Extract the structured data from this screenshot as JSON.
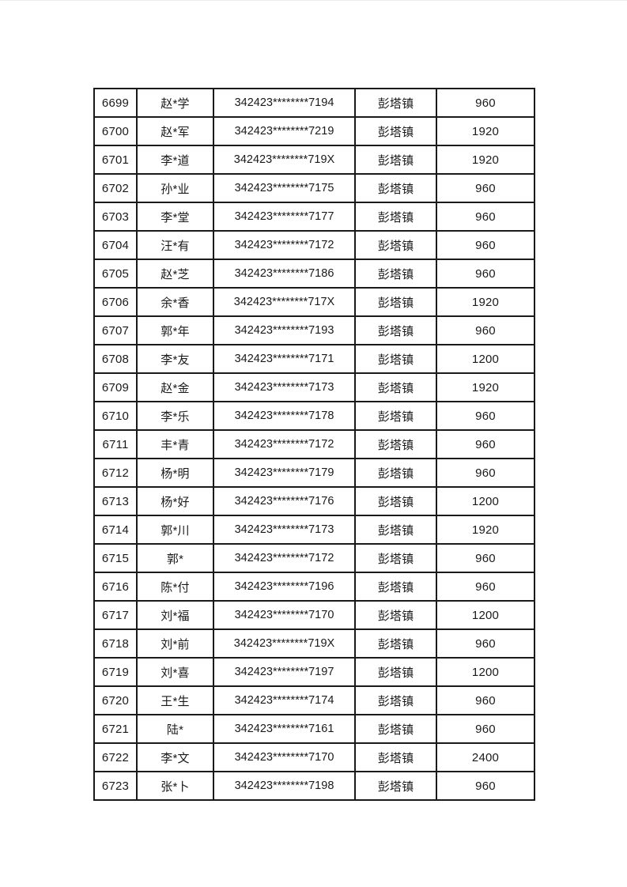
{
  "page": {
    "background_color": "#ffffff",
    "text_color": "#1a1a1a",
    "border_color": "#1a1a1a"
  },
  "table": {
    "rows": [
      {
        "no": "6699",
        "name": "赵*学",
        "id": "342423********7194",
        "town": "彭塔镇",
        "amount": "960"
      },
      {
        "no": "6700",
        "name": "赵*军",
        "id": "342423********7219",
        "town": "彭塔镇",
        "amount": "1920"
      },
      {
        "no": "6701",
        "name": "李*道",
        "id": "342423********719X",
        "town": "彭塔镇",
        "amount": "1920"
      },
      {
        "no": "6702",
        "name": "孙*业",
        "id": "342423********7175",
        "town": "彭塔镇",
        "amount": "960"
      },
      {
        "no": "6703",
        "name": "李*堂",
        "id": "342423********7177",
        "town": "彭塔镇",
        "amount": "960"
      },
      {
        "no": "6704",
        "name": "汪*有",
        "id": "342423********7172",
        "town": "彭塔镇",
        "amount": "960"
      },
      {
        "no": "6705",
        "name": "赵*芝",
        "id": "342423********7186",
        "town": "彭塔镇",
        "amount": "960"
      },
      {
        "no": "6706",
        "name": "余*香",
        "id": "342423********717X",
        "town": "彭塔镇",
        "amount": "1920"
      },
      {
        "no": "6707",
        "name": "郭*年",
        "id": "342423********7193",
        "town": "彭塔镇",
        "amount": "960"
      },
      {
        "no": "6708",
        "name": "李*友",
        "id": "342423********7171",
        "town": "彭塔镇",
        "amount": "1200"
      },
      {
        "no": "6709",
        "name": "赵*金",
        "id": "342423********7173",
        "town": "彭塔镇",
        "amount": "1920"
      },
      {
        "no": "6710",
        "name": "李*乐",
        "id": "342423********7178",
        "town": "彭塔镇",
        "amount": "960"
      },
      {
        "no": "6711",
        "name": "丰*青",
        "id": "342423********7172",
        "town": "彭塔镇",
        "amount": "960"
      },
      {
        "no": "6712",
        "name": "杨*明",
        "id": "342423********7179",
        "town": "彭塔镇",
        "amount": "960"
      },
      {
        "no": "6713",
        "name": "杨*好",
        "id": "342423********7176",
        "town": "彭塔镇",
        "amount": "1200"
      },
      {
        "no": "6714",
        "name": "郭*川",
        "id": "342423********7173",
        "town": "彭塔镇",
        "amount": "1920"
      },
      {
        "no": "6715",
        "name": "郭*",
        "id": "342423********7172",
        "town": "彭塔镇",
        "amount": "960"
      },
      {
        "no": "6716",
        "name": "陈*付",
        "id": "342423********7196",
        "town": "彭塔镇",
        "amount": "960"
      },
      {
        "no": "6717",
        "name": "刘*福",
        "id": "342423********7170",
        "town": "彭塔镇",
        "amount": "1200"
      },
      {
        "no": "6718",
        "name": "刘*前",
        "id": "342423********719X",
        "town": "彭塔镇",
        "amount": "960"
      },
      {
        "no": "6719",
        "name": "刘*喜",
        "id": "342423********7197",
        "town": "彭塔镇",
        "amount": "1200"
      },
      {
        "no": "6720",
        "name": "王*生",
        "id": "342423********7174",
        "town": "彭塔镇",
        "amount": "960"
      },
      {
        "no": "6721",
        "name": "陆*",
        "id": "342423********7161",
        "town": "彭塔镇",
        "amount": "960"
      },
      {
        "no": "6722",
        "name": "李*文",
        "id": "342423********7170",
        "town": "彭塔镇",
        "amount": "2400"
      },
      {
        "no": "6723",
        "name": "张*卜",
        "id": "342423********7198",
        "town": "彭塔镇",
        "amount": "960"
      }
    ]
  }
}
